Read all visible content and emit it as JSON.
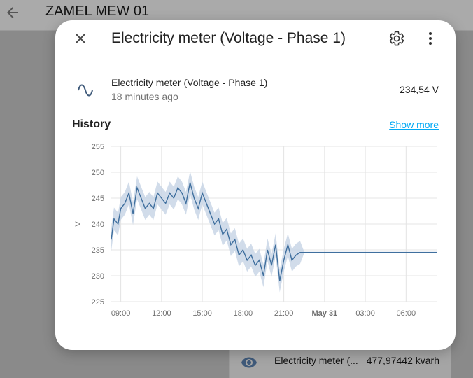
{
  "app": {
    "title": "ZAMEL MEW 01"
  },
  "background_card": {
    "row": {
      "name": "Electricity meter (...",
      "value": "477,97442 kvarh",
      "icon": "eye-icon"
    }
  },
  "dialog": {
    "title": "Electricity meter (Voltage - Phase 1)",
    "entity": {
      "name": "Electricity meter (Voltage - Phase 1)",
      "last_changed": "18 minutes ago",
      "state": "234,54 V",
      "icon": "sine-wave-icon"
    },
    "history_label": "History",
    "show_more": "Show more"
  },
  "colors": {
    "line": "#3f6f9e",
    "band": "#c5d3e5",
    "link": "#03a9f4"
  },
  "chart_data": {
    "type": "line",
    "ylabel": "V",
    "ylim": [
      225,
      255
    ],
    "yticks": [
      225,
      230,
      235,
      240,
      245,
      250,
      255
    ],
    "xticks": [
      {
        "label": "09:00",
        "h": 0,
        "bold": false
      },
      {
        "label": "12:00",
        "h": 3,
        "bold": false
      },
      {
        "label": "15:00",
        "h": 6,
        "bold": false
      },
      {
        "label": "18:00",
        "h": 9,
        "bold": false
      },
      {
        "label": "21:00",
        "h": 12,
        "bold": false
      },
      {
        "label": "May 31",
        "h": 15,
        "bold": true
      },
      {
        "label": "03:00",
        "h": 18,
        "bold": false
      },
      {
        "label": "06:00",
        "h": 21,
        "bold": false
      }
    ],
    "xlim_hours": [
      -0.7,
      23.3
    ],
    "grid": true,
    "series": [
      {
        "x_hours": [
          -0.7,
          -0.5,
          -0.2,
          0,
          0.3,
          0.6,
          0.9,
          1.2,
          1.5,
          1.8,
          2.1,
          2.4,
          2.7,
          3,
          3.3,
          3.6,
          3.9,
          4.2,
          4.5,
          4.8,
          5.1,
          5.4,
          5.7,
          6,
          6.3,
          6.6,
          6.9,
          7.2,
          7.5,
          7.8,
          8.1,
          8.4,
          8.7,
          9,
          9.3,
          9.6,
          9.9,
          10.2,
          10.5,
          10.8,
          11.1,
          11.4,
          11.7,
          12,
          12.3,
          12.6,
          12.9,
          13.2,
          13.5,
          14,
          15,
          17,
          20,
          23.3
        ],
        "values": [
          237,
          241,
          240,
          243,
          244,
          246,
          242,
          247,
          245,
          243,
          244,
          243,
          246,
          245,
          244,
          246,
          245,
          247,
          246,
          244,
          248,
          245,
          243,
          246,
          244,
          242,
          240,
          241,
          238,
          239,
          236,
          237,
          234,
          235,
          233,
          234,
          232,
          233,
          230,
          235,
          232,
          236,
          229,
          233,
          236,
          233,
          234,
          234.5,
          234.5,
          234.5,
          234.5,
          234.5,
          234.5,
          234.5
        ]
      }
    ]
  }
}
